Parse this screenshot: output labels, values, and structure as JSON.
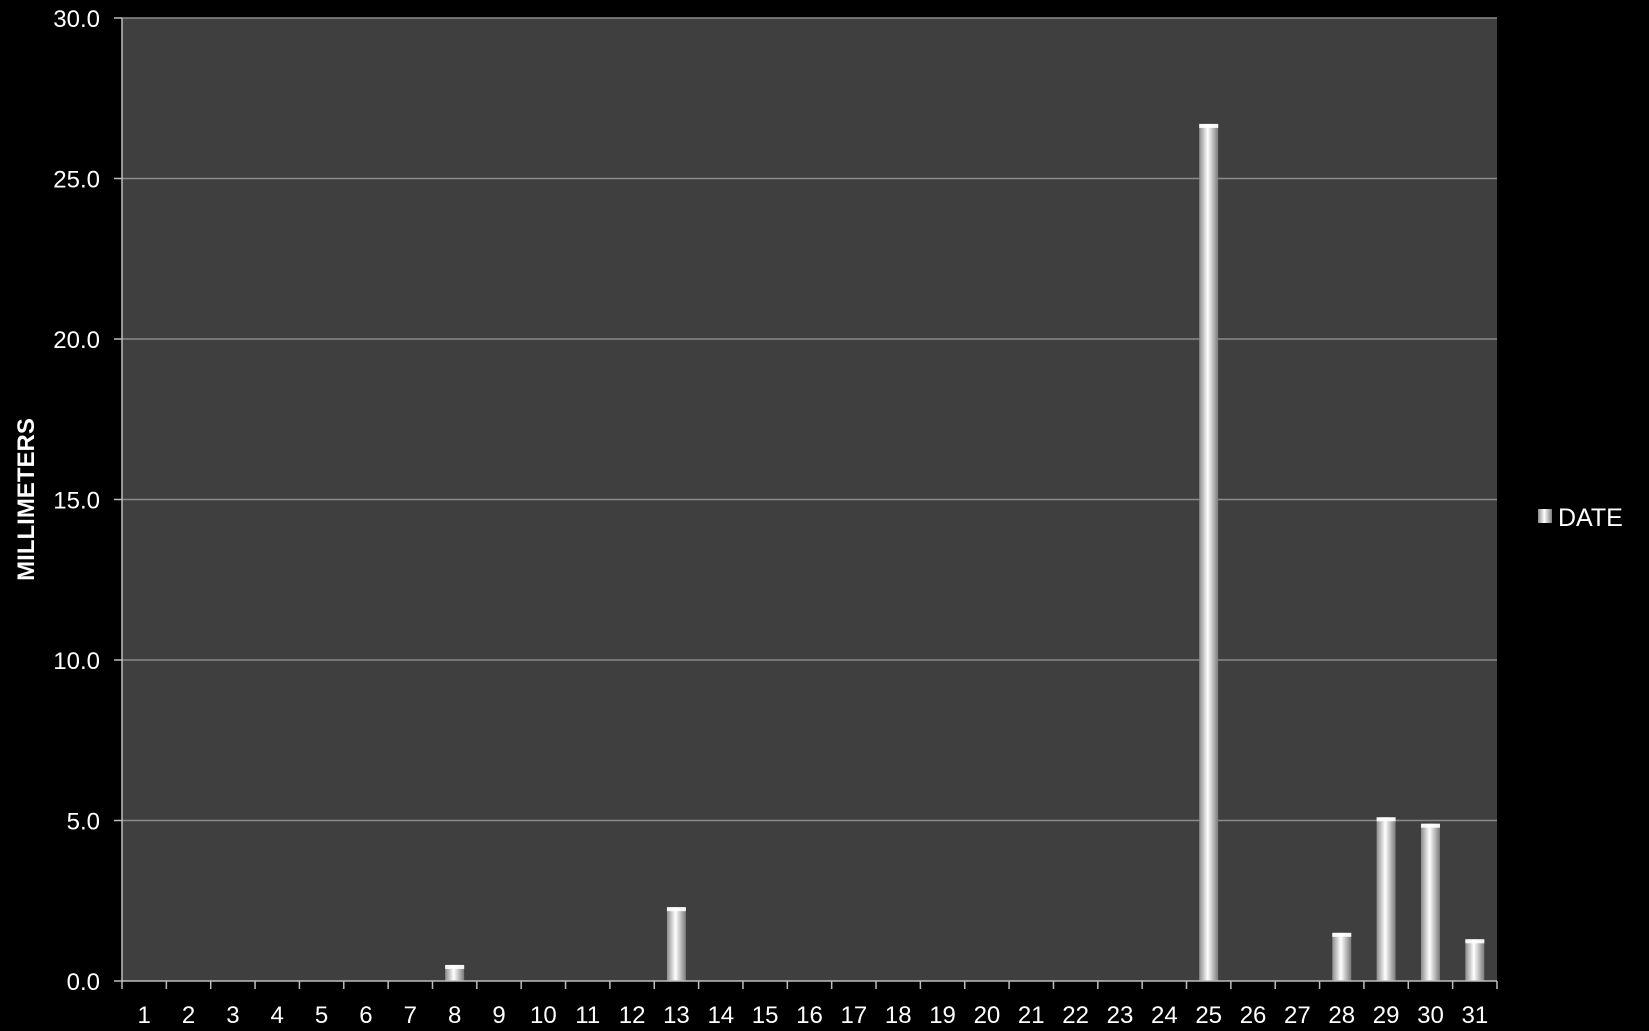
{
  "chart_data": {
    "type": "bar",
    "ylabel": "MILLIMETERS",
    "xlabel": "",
    "ylim": [
      0,
      30
    ],
    "y_ticks": [
      "0.0",
      "5.0",
      "10.0",
      "15.0",
      "20.0",
      "25.0",
      "30.0"
    ],
    "categories": [
      "1",
      "2",
      "3",
      "4",
      "5",
      "6",
      "7",
      "8",
      "9",
      "10",
      "11",
      "12",
      "13",
      "14",
      "15",
      "16",
      "17",
      "18",
      "19",
      "20",
      "21",
      "22",
      "23",
      "24",
      "25",
      "26",
      "27",
      "28",
      "29",
      "30",
      "31"
    ],
    "series": [
      {
        "name": "DATE",
        "values": [
          0,
          0,
          0,
          0,
          0,
          0,
          0,
          0.5,
          0,
          0,
          0,
          0,
          2.3,
          0,
          0,
          0,
          0,
          0,
          0,
          0,
          0,
          0,
          0,
          0,
          26.7,
          0,
          0,
          1.5,
          5.1,
          4.9,
          1.3
        ]
      }
    ],
    "grid": true,
    "legend_position": "right",
    "colors": {
      "background": "#000000",
      "plot_area": "#3f3f3f",
      "gridline": "#8a8a8a",
      "bar": "#e6e6e6"
    }
  }
}
